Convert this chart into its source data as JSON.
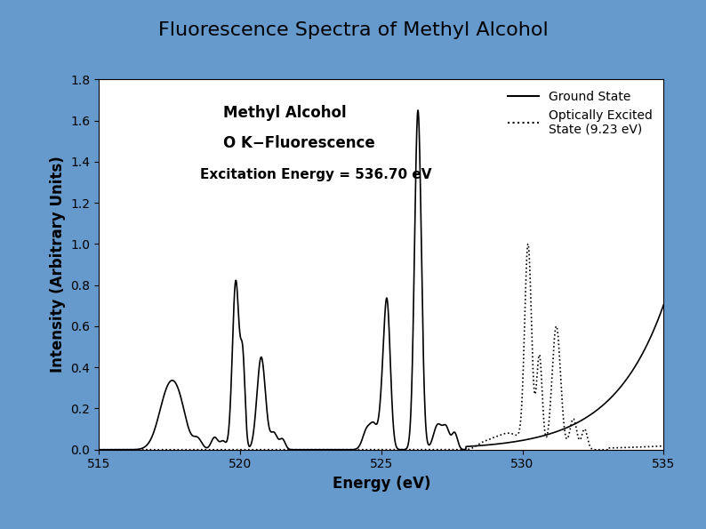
{
  "title": "Fluorescence Spectra of Methyl Alcohol",
  "xlabel": "Energy (eV)",
  "ylabel": "Intensity (Arbitrary Units)",
  "xlim": [
    515,
    535
  ],
  "ylim": [
    0,
    1.8
  ],
  "yticks": [
    0,
    0.2,
    0.4,
    0.6,
    0.8,
    1,
    1.2,
    1.4,
    1.6,
    1.8
  ],
  "xticks": [
    515,
    520,
    525,
    530,
    535
  ],
  "background_color": "#6699CC",
  "plot_bg_color": "#FFFFFF",
  "line_color": "#000000",
  "title_fontsize": 16,
  "label_fontsize": 12,
  "annotation_line1": "Methyl Alcohol",
  "annotation_line2": "O K−Fluorescence",
  "annotation_line3": "Excitation Energy = 536.70 eV",
  "legend_ground": "Ground State",
  "legend_excited": "Optically Excited\nState (9.23 eV)"
}
